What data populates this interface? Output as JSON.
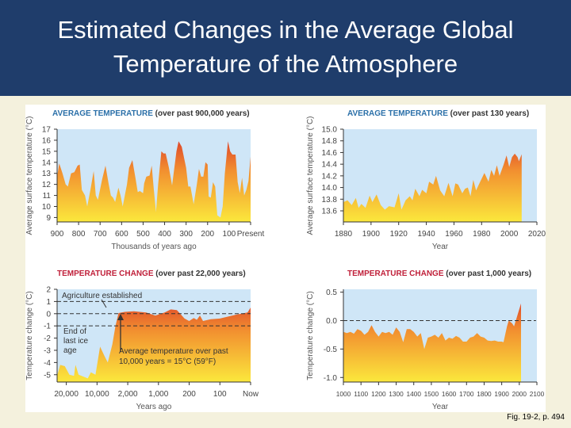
{
  "slide": {
    "title_line1": "Estimated Changes in the Average Global",
    "title_line2": "Temperature of the Atmosphere",
    "caption": "Fig. 19-2, p. 494"
  },
  "colors": {
    "title_bg": "#1f3d6b",
    "blue_title": "#2a6fa8",
    "red_title": "#c0203a",
    "plot_bg": "#cfe6f7",
    "fill_low": "#fbe83c",
    "fill_mid": "#f29030",
    "fill_high": "#d62a28"
  },
  "chart_data": [
    {
      "type": "area",
      "title_colored": "AVERAGE TEMPERATURE",
      "title_rest": " (over past 900,000 years)",
      "xlabel": "Thousands of years ago",
      "ylabel": "Average surface temperature (°C)",
      "xlim": [
        900,
        0
      ],
      "ylim": [
        8.6,
        17
      ],
      "yticks": [
        "17",
        "16",
        "15",
        "14",
        "13",
        "12",
        "11",
        "10",
        "9"
      ],
      "ytick_values": [
        17,
        16,
        15,
        14,
        13,
        12,
        11,
        10,
        9
      ],
      "xticks": [
        "900",
        "800",
        "700",
        "600",
        "500",
        "400",
        "300",
        "200",
        "100",
        "Present"
      ],
      "xtick_values": [
        900,
        800,
        700,
        600,
        500,
        400,
        300,
        200,
        100,
        0
      ],
      "x": [
        900,
        890,
        875,
        860,
        850,
        835,
        820,
        805,
        795,
        785,
        770,
        760,
        745,
        730,
        720,
        710,
        690,
        675,
        660,
        650,
        640,
        630,
        615,
        605,
        595,
        575,
        565,
        550,
        535,
        525,
        515,
        500,
        495,
        485,
        470,
        460,
        450,
        440,
        430,
        415,
        405,
        395,
        380,
        365,
        345,
        335,
        320,
        300,
        290,
        280,
        265,
        250,
        240,
        230,
        220,
        210,
        200,
        195,
        185,
        175,
        165,
        155,
        140,
        130,
        120,
        105,
        95,
        85,
        70,
        60,
        50,
        40,
        30,
        20,
        10,
        0
      ],
      "y": [
        12.7,
        13.9,
        13,
        12,
        11.8,
        13,
        13.1,
        13.7,
        13.8,
        11.5,
        11,
        10,
        11.5,
        13.2,
        11,
        10.6,
        12.5,
        13.7,
        12,
        11,
        10.8,
        10.4,
        11.7,
        11,
        10,
        12,
        13.5,
        14.2,
        12.5,
        11.3,
        11.4,
        11.2,
        12.1,
        12.7,
        12.8,
        13.7,
        11.5,
        9.5,
        12,
        15,
        14.8,
        14.8,
        13.5,
        11.9,
        15,
        15.9,
        15.4,
        13.5,
        11.8,
        11.8,
        10.2,
        12,
        13.4,
        12.7,
        12.7,
        14,
        13.8,
        10.9,
        10.8,
        12.2,
        11.8,
        9.2,
        9,
        10,
        13,
        15.9,
        15,
        14.7,
        14.7,
        12.2,
        11.2,
        12.6,
        11,
        11.5,
        12.3,
        14.5
      ]
    },
    {
      "type": "area",
      "title_colored": "AVERAGE TEMPERATURE",
      "title_rest": " (over past 130 years)",
      "xlabel": "Year",
      "ylabel": "Average surface temperature (°C)",
      "xlim": [
        1880,
        2020
      ],
      "ylim": [
        13.41,
        15.0
      ],
      "yticks": [
        "15.0",
        "14.8",
        "14.6",
        "14.4",
        "14.2",
        "14.0",
        "13.8",
        "13.6"
      ],
      "ytick_values": [
        15.0,
        14.8,
        14.6,
        14.4,
        14.2,
        14.0,
        13.8,
        13.6
      ],
      "xticks": [
        "1880",
        "1900",
        "1920",
        "1940",
        "1960",
        "1980",
        "2000",
        "2020"
      ],
      "xtick_values": [
        1880,
        1900,
        1920,
        1940,
        1960,
        1980,
        2000,
        2020
      ],
      "x": [
        1880,
        1883,
        1886,
        1889,
        1891,
        1893,
        1896,
        1899,
        1901,
        1904,
        1907,
        1910,
        1913,
        1917,
        1920,
        1922,
        1925,
        1928,
        1930,
        1932,
        1935,
        1937,
        1940,
        1942,
        1945,
        1947,
        1950,
        1953,
        1956,
        1959,
        1961,
        1963,
        1966,
        1968,
        1970,
        1972,
        1974,
        1976,
        1979,
        1982,
        1985,
        1987,
        1989,
        1991,
        1993,
        1996,
        1998,
        2000,
        2002,
        2004,
        2006,
        2007,
        2009
      ],
      "y": [
        13.75,
        13.78,
        13.7,
        13.82,
        13.65,
        13.72,
        13.65,
        13.86,
        13.75,
        13.88,
        13.7,
        13.62,
        13.68,
        13.66,
        13.9,
        13.62,
        13.78,
        13.85,
        13.78,
        13.98,
        13.85,
        13.96,
        13.9,
        14.1,
        14.05,
        14.2,
        13.95,
        13.85,
        14.08,
        13.85,
        14.07,
        14.05,
        13.9,
        13.98,
        14.0,
        13.85,
        14.13,
        13.95,
        14.1,
        14.25,
        14.1,
        14.3,
        14.2,
        14.38,
        14.2,
        14.4,
        14.55,
        14.35,
        14.52,
        14.58,
        14.52,
        14.45,
        14.57
      ]
    },
    {
      "type": "area",
      "title_colored": "TEMPERATURE CHANGE",
      "title_rest": " (over past 22,000 years)",
      "xlabel": "Years ago",
      "ylabel": "Temperature change (°C)",
      "x_scale": "categorical (non-linear)",
      "xlim": [
        -0.3,
        6
      ],
      "ylim": [
        -5.6,
        2
      ],
      "yticks": [
        "2",
        "1",
        "0",
        "-1",
        "-2",
        "-3",
        "-4",
        "-5"
      ],
      "ytick_values": [
        2,
        1,
        0,
        -1,
        -2,
        -3,
        -4,
        -5
      ],
      "xticks": [
        "20,000",
        "10,000",
        "2,000",
        "1,000",
        "200",
        "100",
        "Now"
      ],
      "xtick_values": [
        0,
        1,
        2,
        3,
        4,
        5,
        6
      ],
      "reference_lines": [
        1,
        0,
        -1
      ],
      "annotations": {
        "agriculture": "Agriculture established",
        "ice_age": [
          "End of",
          "last ice",
          "age"
        ],
        "average": [
          "Average temperature over past",
          "10,000 years = 15°C (59°F)"
        ]
      },
      "x": [
        -0.3,
        -0.2,
        -0.05,
        0.1,
        0.25,
        0.3,
        0.4,
        0.7,
        0.8,
        0.95,
        1.1,
        1.25,
        1.35,
        1.5,
        1.6,
        1.7,
        1.9,
        2.2,
        2.6,
        2.9,
        3.2,
        3.4,
        3.6,
        3.85,
        4.0,
        4.15,
        4.25,
        4.35,
        4.45,
        4.7,
        5.0,
        5.5,
        5.9,
        6.0
      ],
      "y": [
        -5.1,
        -4.2,
        -4.3,
        -5.0,
        -5.1,
        -4.2,
        -5.0,
        -5.3,
        -4.8,
        -5.0,
        -2.7,
        -3.5,
        -4.0,
        -2.5,
        -1.0,
        0.05,
        0.15,
        0.2,
        0.1,
        -0.15,
        0.1,
        0.35,
        0.3,
        -0.4,
        -0.6,
        -0.35,
        -0.5,
        -0.15,
        -0.6,
        -0.45,
        -0.4,
        -0.1,
        0.1,
        0.5
      ]
    },
    {
      "type": "area",
      "title_colored": "TEMPERATURE CHANGE",
      "title_rest": " (over past 1,000 years)",
      "xlabel": "Year",
      "ylabel": "Temperature change (°C)",
      "xlim": [
        1000,
        2100
      ],
      "ylim": [
        -1.08,
        0.55
      ],
      "yticks": [
        "0.5",
        "0.0",
        "-0.5",
        "-1.0"
      ],
      "ytick_values": [
        0.5,
        0,
        -0.5,
        -1.0
      ],
      "xticks": [
        "1000",
        "1100",
        "1200",
        "1300",
        "1400",
        "1500",
        "1600",
        "1700",
        "1800",
        "1900",
        "2000",
        "2100"
      ],
      "xtick_values": [
        1000,
        1100,
        1200,
        1300,
        1400,
        1500,
        1600,
        1700,
        1800,
        1900,
        2000,
        2100
      ],
      "reference_lines": [
        0
      ],
      "x": [
        1000,
        1020,
        1040,
        1060,
        1080,
        1100,
        1120,
        1140,
        1160,
        1180,
        1200,
        1220,
        1240,
        1260,
        1280,
        1300,
        1320,
        1340,
        1360,
        1380,
        1400,
        1420,
        1440,
        1460,
        1480,
        1500,
        1520,
        1540,
        1560,
        1580,
        1600,
        1620,
        1640,
        1660,
        1680,
        1700,
        1720,
        1740,
        1760,
        1780,
        1800,
        1820,
        1840,
        1860,
        1880,
        1900,
        1910,
        1930,
        1940,
        1960,
        1970,
        1990,
        2010
      ],
      "y": [
        -0.2,
        -0.22,
        -0.2,
        -0.23,
        -0.15,
        -0.18,
        -0.25,
        -0.2,
        -0.08,
        -0.2,
        -0.28,
        -0.2,
        -0.22,
        -0.2,
        -0.25,
        -0.12,
        -0.2,
        -0.38,
        -0.15,
        -0.15,
        -0.2,
        -0.28,
        -0.22,
        -0.5,
        -0.3,
        -0.28,
        -0.25,
        -0.3,
        -0.22,
        -0.35,
        -0.3,
        -0.32,
        -0.27,
        -0.3,
        -0.37,
        -0.37,
        -0.3,
        -0.28,
        -0.22,
        -0.28,
        -0.3,
        -0.35,
        -0.36,
        -0.35,
        -0.37,
        -0.37,
        -0.38,
        -0.1,
        0,
        -0.05,
        -0.1,
        0.1,
        0.3
      ]
    }
  ]
}
